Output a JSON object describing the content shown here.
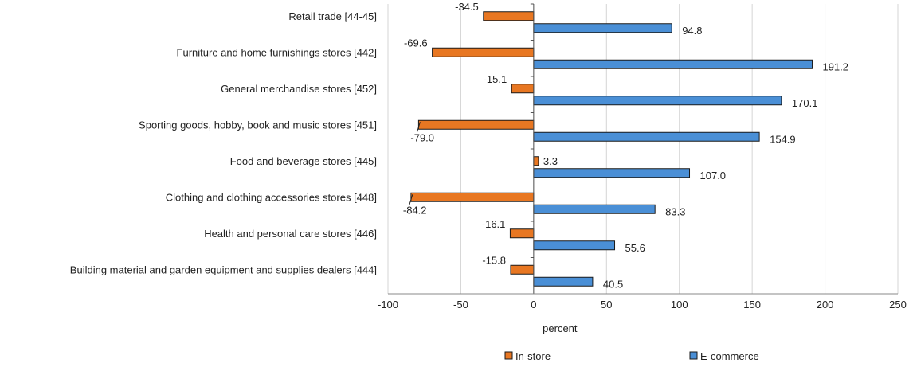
{
  "chart_data": {
    "type": "bar",
    "orientation": "horizontal",
    "categories": [
      "Retail trade [44-45]",
      "Furniture and home furnishings stores [442]",
      "General merchandise stores [452]",
      "Sporting goods, hobby, book and music stores [451]",
      "Food and beverage stores [445]",
      "Clothing and clothing accessories stores [448]",
      "Health and personal care stores [446]",
      "Building material and garden equipment and supplies dealers [444]"
    ],
    "series": [
      {
        "name": "In-store",
        "color": "#e87722",
        "values": [
          -34.5,
          -69.6,
          -15.1,
          -79.0,
          3.3,
          -84.2,
          -16.1,
          -15.8
        ],
        "labels": [
          "-34.5",
          "-69.6",
          "-15.1",
          "-79.0",
          "3.3",
          "-84.2",
          "-16.1",
          "-15.8"
        ]
      },
      {
        "name": "E-commerce",
        "color": "#4a8fd6",
        "values": [
          94.8,
          191.2,
          170.1,
          154.9,
          107.0,
          83.3,
          55.6,
          40.5
        ],
        "labels": [
          "94.8",
          "191.2",
          "170.1",
          "154.9",
          "107.0",
          "83.3",
          "55.6",
          "40.5"
        ]
      }
    ],
    "xlabel": "percent",
    "xlim": [
      -100,
      250
    ],
    "xticks": [
      -100,
      -50,
      0,
      50,
      100,
      150,
      200,
      250
    ],
    "xtick_labels": [
      "-100",
      "-50",
      "0",
      "50",
      "100",
      "150",
      "200",
      "250"
    ],
    "grid": "vertical",
    "legend": "bottom"
  }
}
